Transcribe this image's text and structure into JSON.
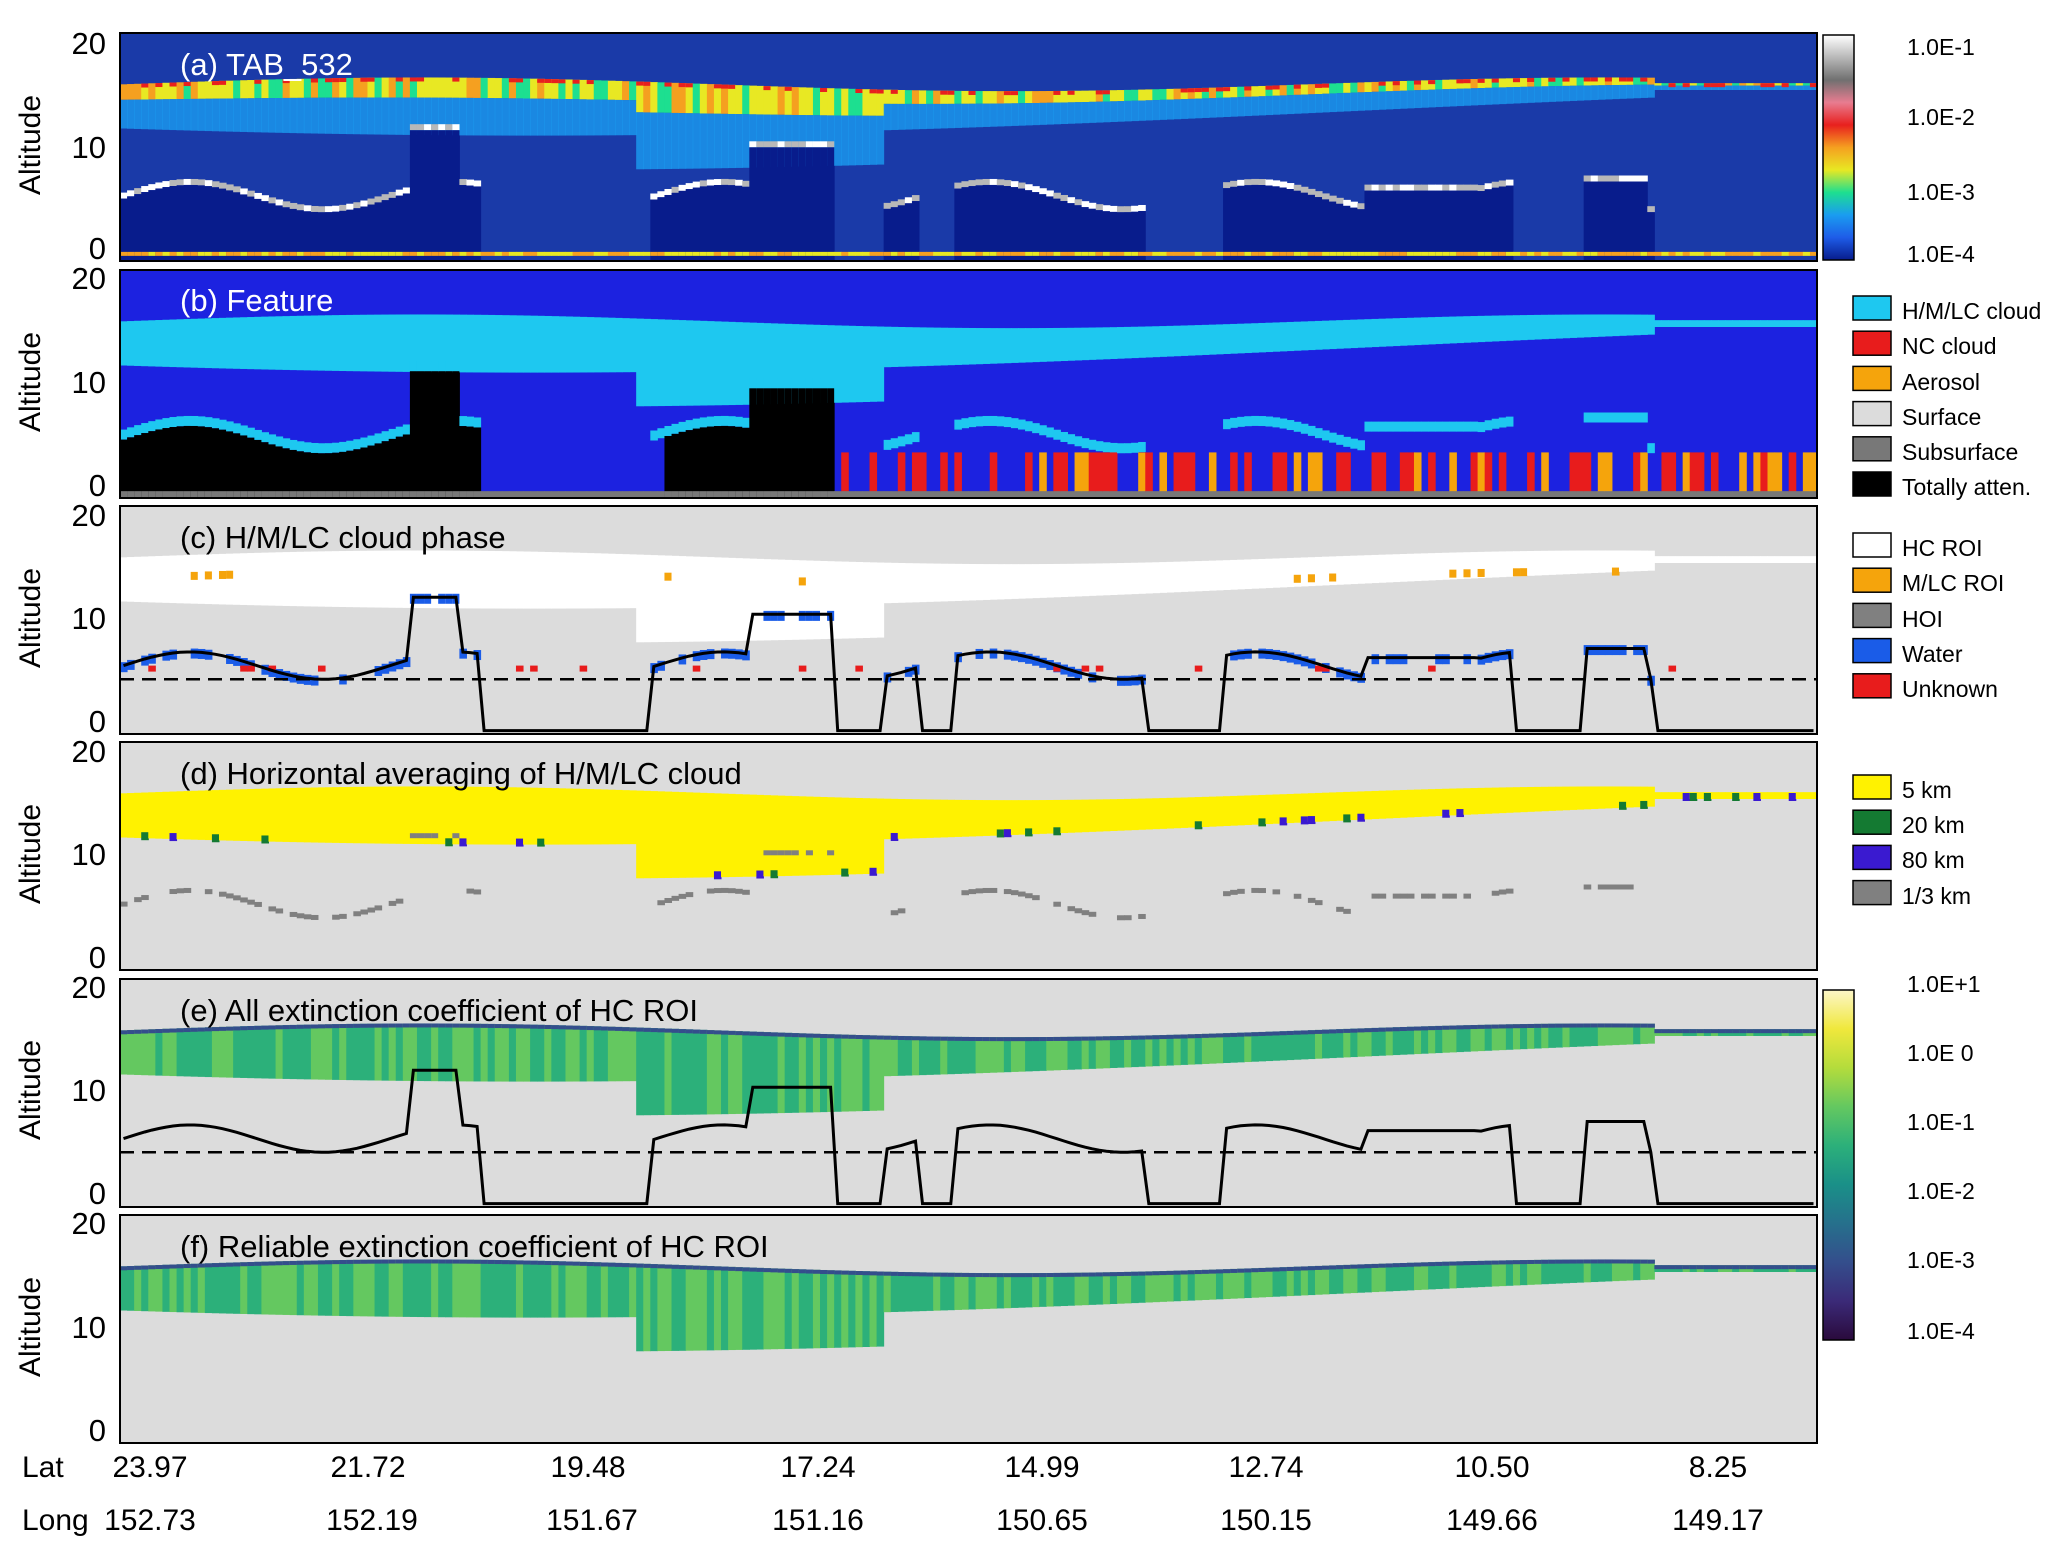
{
  "figure": {
    "y_axis_label": "Altitude",
    "y_ticks": [
      "0",
      "10",
      "20"
    ],
    "x_axis": {
      "row_labels": [
        "Lat",
        "Long"
      ],
      "lat": [
        "23.97",
        "21.72",
        "19.48",
        "17.24",
        "14.99",
        "12.74",
        "10.50",
        "8.25"
      ],
      "long": [
        "152.73",
        "152.19",
        "151.67",
        "151.16",
        "150.65",
        "150.15",
        "149.66",
        "149.17"
      ]
    }
  },
  "chart_data": [
    {
      "type": "heatmap",
      "title": "(a) TAB_532",
      "ylim": [
        0,
        20
      ],
      "colorbar": {
        "ticks": [
          "1.0E-1",
          "1.0E-2",
          "1.0E-3",
          "1.0E-4"
        ],
        "colors": [
          "#081c8c",
          "#1e5ce8",
          "#1a9cf0",
          "#1ddf90",
          "#e8e823",
          "#f5a020",
          "#e8201e",
          "#e87c90",
          "#707070",
          "#b8b8b8",
          "#ffffff"
        ]
      },
      "background": "#1a3aa8"
    },
    {
      "type": "heatmap",
      "title": "(b) Feature",
      "ylim": [
        0,
        20
      ],
      "legend": [
        {
          "label": "H/M/LC cloud",
          "color": "#1ec8f0"
        },
        {
          "label": "NC cloud",
          "color": "#e81c1c"
        },
        {
          "label": "Aerosol",
          "color": "#f5a40c"
        },
        {
          "label": "Surface",
          "color": "#dcdcdc"
        },
        {
          "label": "Subsurface",
          "color": "#787878"
        },
        {
          "label": "Totally atten.",
          "color": "#000000"
        }
      ],
      "background": "#1c22e0"
    },
    {
      "type": "heatmap",
      "title": "(c) H/M/LC cloud phase",
      "ylim": [
        0,
        20
      ],
      "legend": [
        {
          "label": "HC ROI",
          "color": "#ffffff"
        },
        {
          "label": "M/LC ROI",
          "color": "#f5a40c"
        },
        {
          "label": "HOI",
          "color": "#808080"
        },
        {
          "label": "Water",
          "color": "#1a5ce8"
        },
        {
          "label": "Unknown",
          "color": "#e81c1c"
        }
      ],
      "background": "#dcdcdc",
      "reference_line_altitude": 4.8
    },
    {
      "type": "heatmap",
      "title": "(d) Horizontal averaging of H/M/LC cloud",
      "ylim": [
        0,
        20
      ],
      "legend": [
        {
          "label": "5 km",
          "color": "#fff200"
        },
        {
          "label": "20 km",
          "color": "#147a32"
        },
        {
          "label": "80 km",
          "color": "#3a1ad0"
        },
        {
          "label": "1/3 km",
          "color": "#808080"
        }
      ],
      "background": "#dcdcdc"
    },
    {
      "type": "heatmap",
      "title": "(e) All extinction coefficient of HC ROI",
      "ylim": [
        0,
        20
      ],
      "colorbar": {
        "ticks": [
          "1.0E+1",
          "1.0E 0",
          "1.0E-1",
          "1.0E-2",
          "1.0E-3",
          "1.0E-4"
        ],
        "colors": [
          "#2a0a3c",
          "#3b2a78",
          "#344e8c",
          "#26708c",
          "#1a9088",
          "#2cb07a",
          "#64c860",
          "#b4dc3c",
          "#f0e83c",
          "#fcf6c8"
        ]
      },
      "background": "#dcdcdc",
      "reference_line_altitude": 4.8
    },
    {
      "type": "heatmap",
      "title": "(f) Reliable extinction coefficient of HC ROI",
      "ylim": [
        0,
        20
      ],
      "background": "#dcdcdc"
    }
  ]
}
